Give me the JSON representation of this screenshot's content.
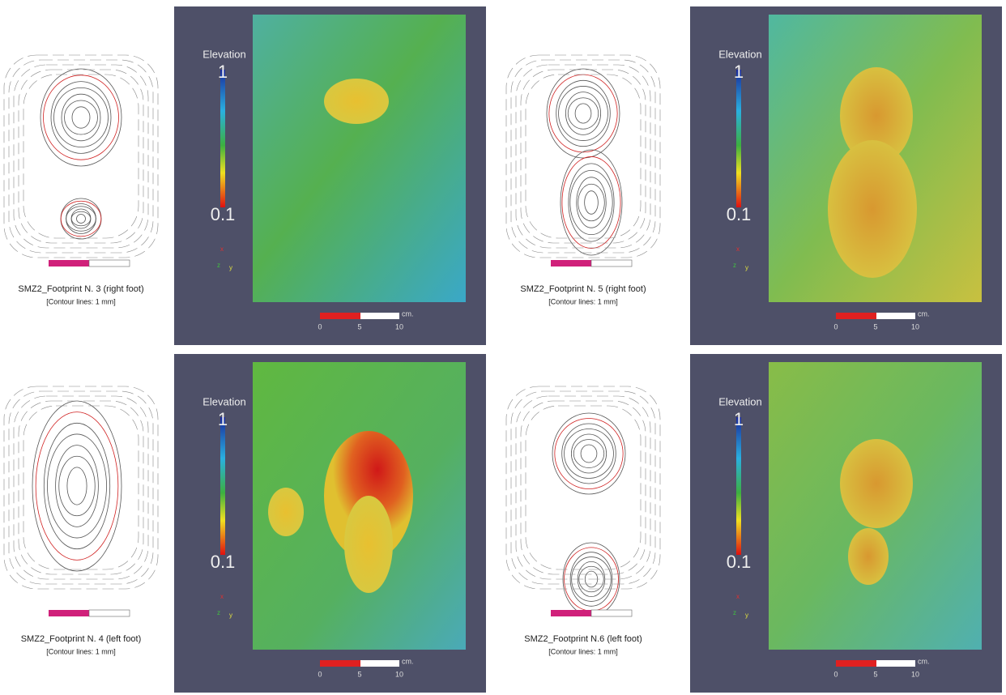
{
  "panels": [
    {
      "caption": "SMZ2_Footprint N. 3 (right foot)",
      "note": "[Contour lines: 1 mm]",
      "colorbar": {
        "title": "Elevation",
        "max": "1",
        "min": "0.1"
      },
      "axes": [
        "x",
        "z",
        "y"
      ],
      "scale": {
        "ticks": [
          "0",
          "5",
          "10"
        ],
        "unit": "cm."
      }
    },
    {
      "caption": "SMZ2_Footprint N. 5 (right foot)",
      "note": "[Contour lines: 1 mm]",
      "colorbar": {
        "title": "Elevation",
        "max": "1",
        "min": "0.1"
      },
      "axes": [
        "x",
        "z",
        "y"
      ],
      "scale": {
        "ticks": [
          "0",
          "5",
          "10"
        ],
        "unit": "cm."
      }
    },
    {
      "caption": "SMZ2_Footprint N. 4 (left foot)",
      "note": "[Contour lines: 1 mm]",
      "colorbar": {
        "title": "Elevation",
        "max": "1",
        "min": "0.1"
      },
      "axes": [
        "x",
        "z",
        "y"
      ],
      "scale": {
        "ticks": [
          "0",
          "5",
          "10"
        ],
        "unit": "cm."
      }
    },
    {
      "caption": "SMZ2_Footprint N.6 (left foot)",
      "note": "[Contour lines: 1 mm]",
      "colorbar": {
        "title": "Elevation",
        "max": "1",
        "min": "0.1"
      },
      "axes": [
        "x",
        "z",
        "y"
      ],
      "scale": {
        "ticks": [
          "0",
          "5",
          "10"
        ],
        "unit": "cm."
      }
    }
  ]
}
